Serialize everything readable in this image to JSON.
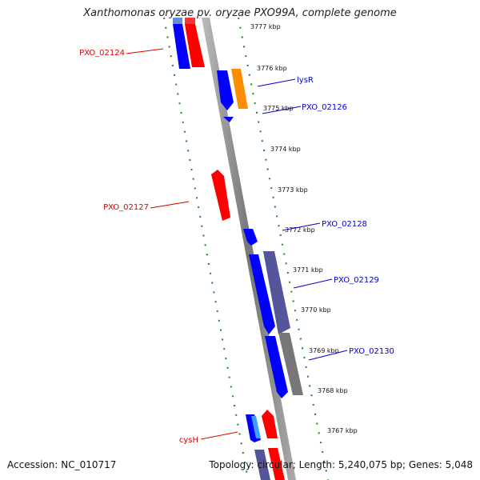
{
  "title": "Xanthomonas oryzae pv. oryzae PXO99A, complete genome",
  "footer": {
    "accession": "Accession: NC_010717",
    "summary": "Topology: circular; Length: 5,240,075 bp; Genes: 5,048"
  },
  "colors": {
    "plus_strand": "#0000ff",
    "minus_strand": "#ff0000",
    "orange_feature": "#ff8c00",
    "slate_feature": "#55559a",
    "gray_feature": "#777777",
    "backbone": "#888888",
    "dotted_guide": "#1a8a1a",
    "label_blue": "#0000cc",
    "label_red": "#dd0000"
  },
  "scale_labels": [
    "3777 kbp",
    "3776 kbp",
    "3775 kbp",
    "3774 kbp",
    "3773 kbp",
    "3772 kbp",
    "3771 kbp",
    "3770 kbp",
    "3769 kbp",
    "3768 kbp",
    "3767 kbp"
  ],
  "gene_labels": [
    {
      "id": "g1",
      "text": "PXO_02124",
      "color": "red"
    },
    {
      "id": "g2",
      "text": "lysR",
      "color": "blue"
    },
    {
      "id": "g3",
      "text": "PXO_02126",
      "color": "blue"
    },
    {
      "id": "g4",
      "text": "PXO_02127",
      "color": "red"
    },
    {
      "id": "g5",
      "text": "PXO_02128",
      "color": "blue"
    },
    {
      "id": "g6",
      "text": "PXO_02129",
      "color": "blue"
    },
    {
      "id": "g7",
      "text": "PXO_02130",
      "color": "blue"
    },
    {
      "id": "g8",
      "text": "cysH",
      "color": "red"
    }
  ]
}
